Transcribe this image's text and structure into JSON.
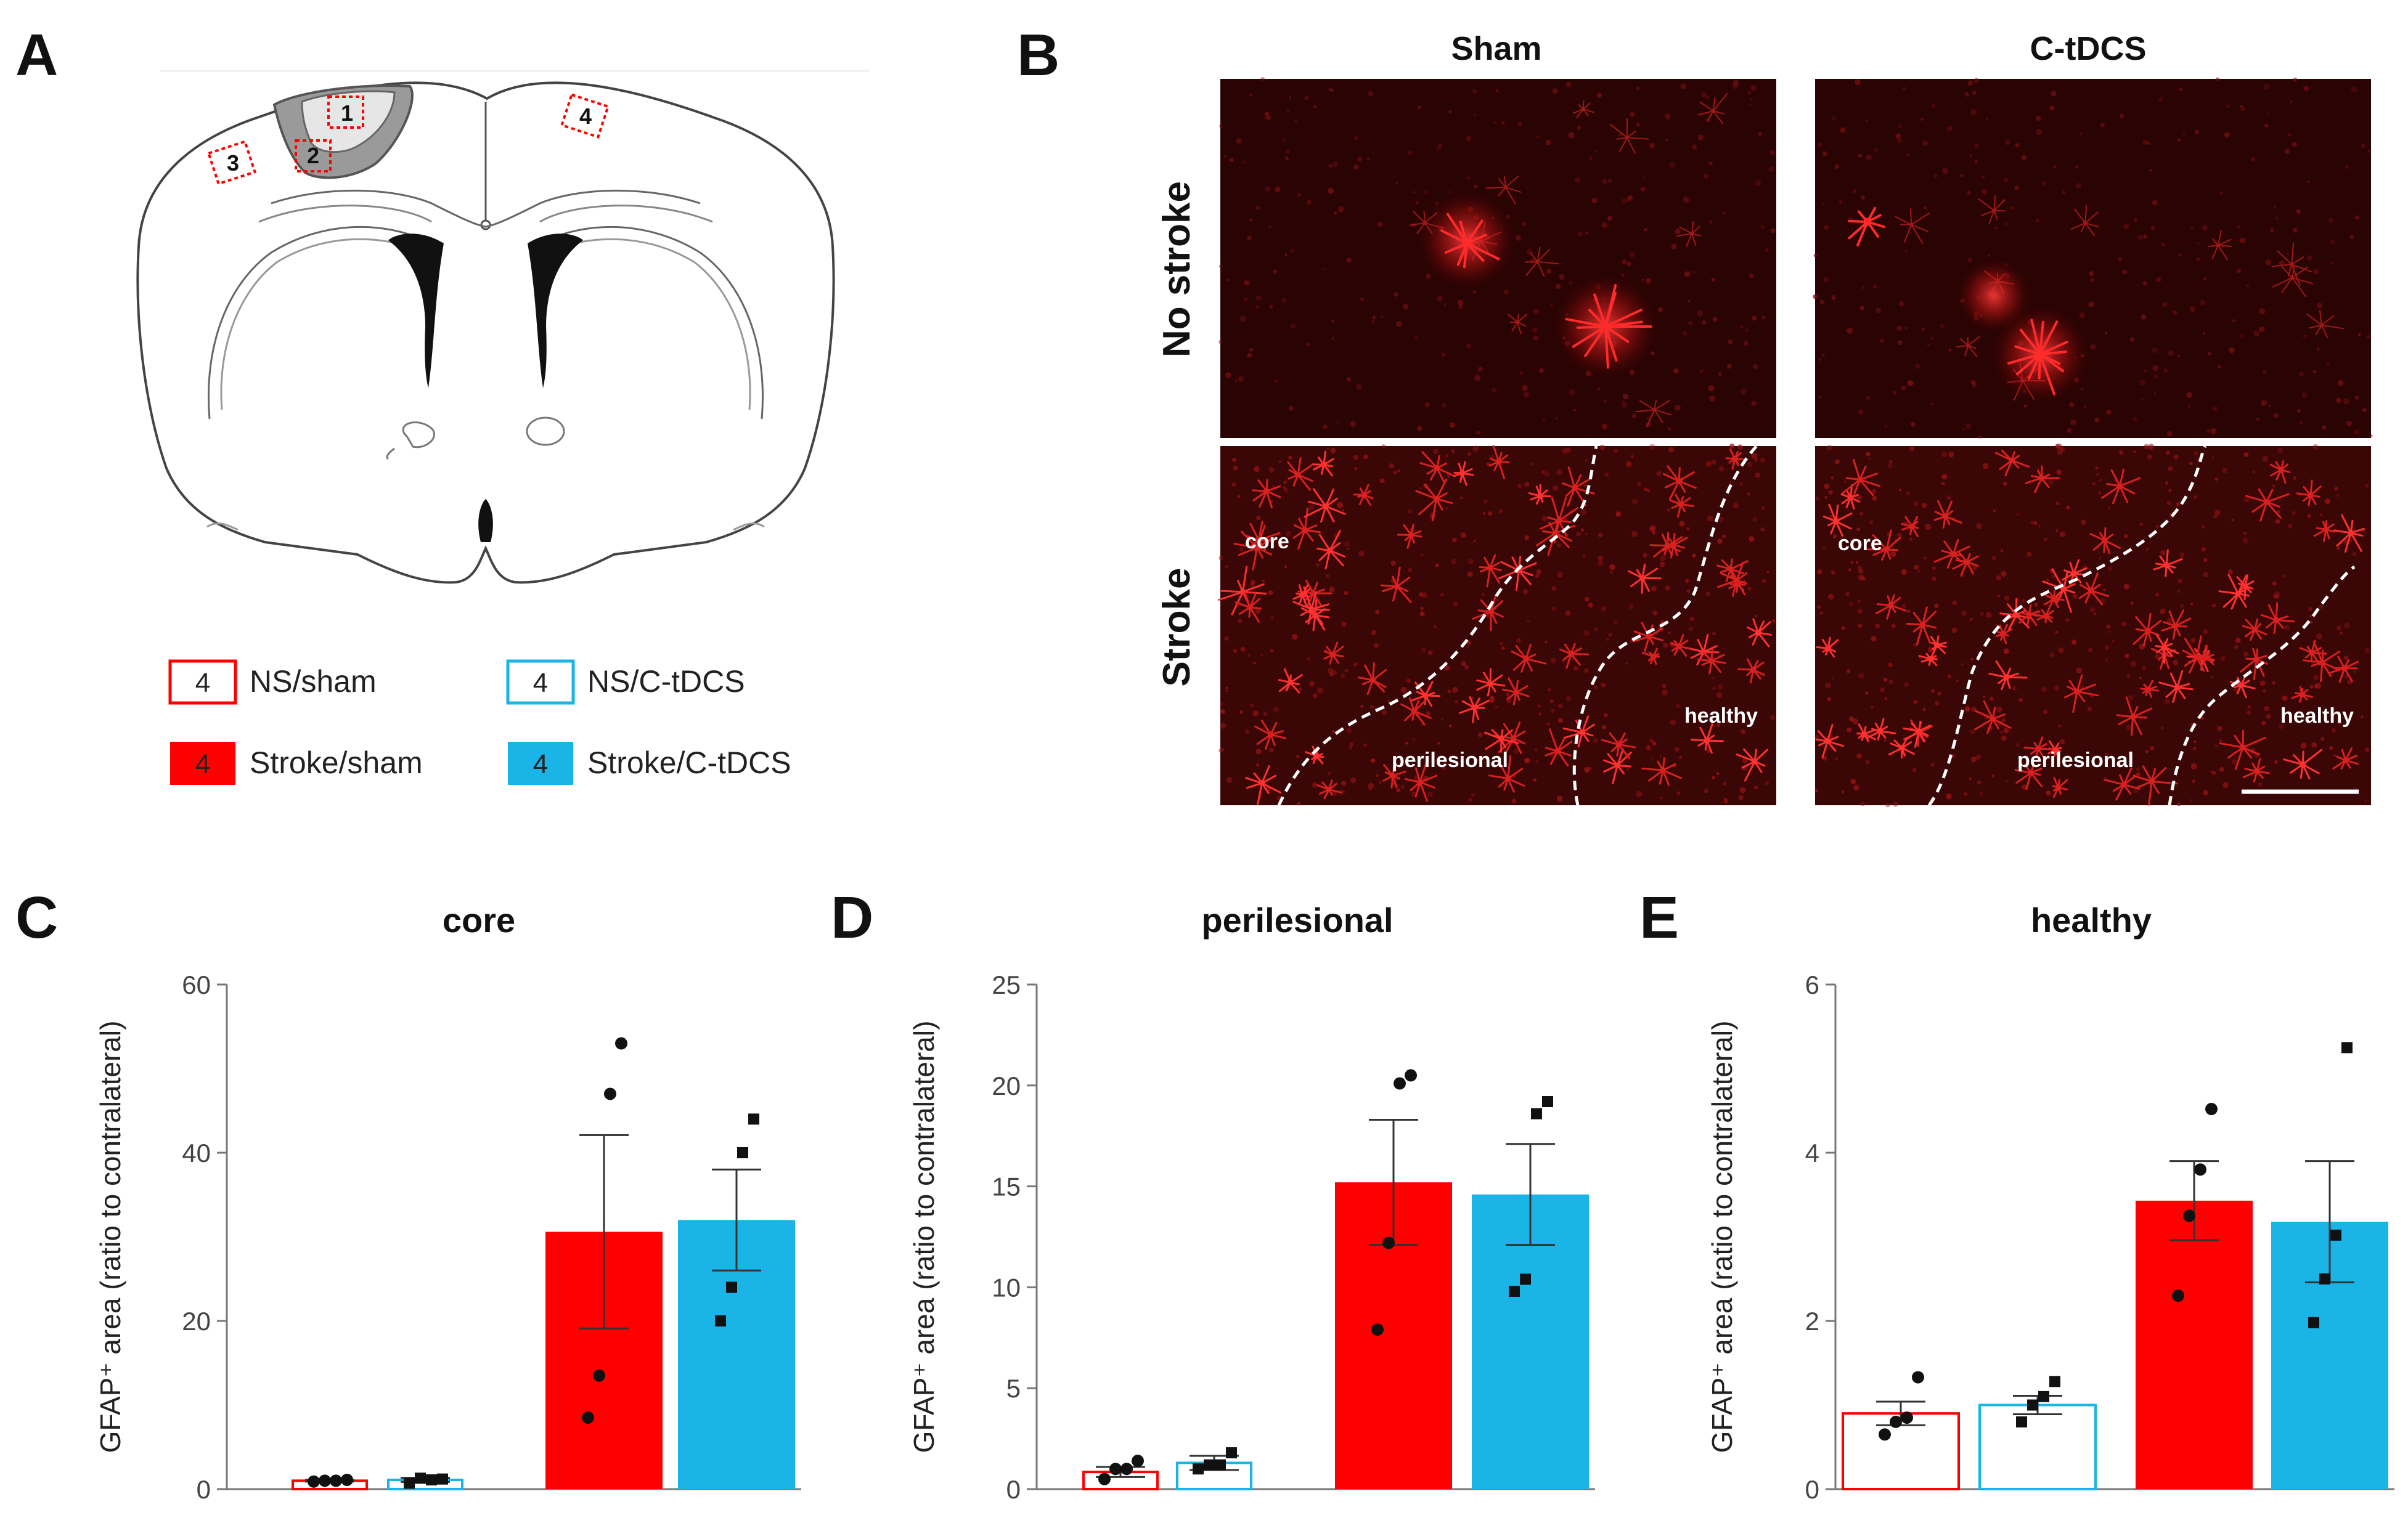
{
  "panels": {
    "a": "A",
    "b": "B",
    "c": "C",
    "d": "D",
    "e": "E"
  },
  "schematic": {
    "regions": [
      "1",
      "2",
      "3",
      "4"
    ]
  },
  "legend": {
    "sample_n": "4",
    "items": [
      {
        "label": "NS/sham",
        "color": "#ff0000",
        "filled": false
      },
      {
        "label": "NS/C-tDCS",
        "color": "#1ab4e6",
        "filled": false
      },
      {
        "label": "Stroke/sham",
        "color": "#ff0000",
        "filled": true
      },
      {
        "label": "Stroke/C-tDCS",
        "color": "#1ab4e6",
        "filled": true
      }
    ]
  },
  "micro": {
    "col_sham": "Sham",
    "col_ctdcs": "C-tDCS",
    "row_nostroke": "No stroke",
    "row_stroke": "Stroke",
    "zone_core": "core",
    "zone_perilesional": "perilesional",
    "zone_healthy": "healthy"
  },
  "colors": {
    "red": "#ff0000",
    "blue": "#1ab4e6",
    "micro_bg": "#2a0303",
    "signal": "#ff2a2a"
  },
  "chart_data": [
    {
      "type": "bar",
      "panel": "C",
      "title": "core",
      "ylabel": "GFAP⁺ area (ratio to contralateral)",
      "ylim": [
        0,
        60
      ],
      "yticks": [
        0,
        20,
        40,
        60
      ],
      "categories": [
        "NS/sham",
        "NS/C-tDCS",
        "Stroke/sham",
        "Stroke/C-tDCS"
      ],
      "values": [
        1.0,
        1.1,
        30.6,
        32.0
      ],
      "sem": [
        0.1,
        0.25,
        11.5,
        6.0
      ],
      "points": [
        [
          0.9,
          1.0,
          1.0,
          1.1
        ],
        [
          0.7,
          1.3,
          1.1,
          1.2
        ],
        [
          8.5,
          13.5,
          47,
          53
        ],
        [
          20,
          24,
          40,
          44
        ]
      ]
    },
    {
      "type": "bar",
      "panel": "D",
      "title": "perilesional",
      "ylabel": "GFAP⁺ area (ratio to contralateral)",
      "ylim": [
        0,
        25
      ],
      "yticks": [
        0,
        5,
        10,
        15,
        20,
        25
      ],
      "categories": [
        "NS/sham",
        "NS/C-tDCS",
        "Stroke/sham",
        "Stroke/C-tDCS"
      ],
      "values": [
        0.85,
        1.3,
        15.2,
        14.6
      ],
      "sem": [
        0.25,
        0.35,
        3.1,
        2.5
      ],
      "points": [
        [
          0.5,
          1.0,
          1.0,
          1.4
        ],
        [
          1.0,
          1.2,
          1.2,
          1.8
        ],
        [
          7.9,
          12.2,
          20.1,
          20.5
        ],
        [
          9.8,
          10.4,
          18.6,
          19.2
        ]
      ]
    },
    {
      "type": "bar",
      "panel": "E",
      "title": "healthy",
      "ylabel": "GFAP⁺ area (ratio to contralateral)",
      "ylim": [
        0,
        6
      ],
      "yticks": [
        0,
        2,
        4,
        6
      ],
      "categories": [
        "NS/sham",
        "NS/C-tDCS",
        "Stroke/sham",
        "Stroke/C-tDCS"
      ],
      "values": [
        0.9,
        1.0,
        3.43,
        3.18
      ],
      "sem": [
        0.14,
        0.11,
        0.47,
        0.72
      ],
      "points": [
        [
          0.65,
          0.8,
          0.85,
          1.33
        ],
        [
          0.8,
          1.0,
          1.1,
          1.28
        ],
        [
          2.3,
          3.25,
          3.8,
          4.52
        ],
        [
          1.98,
          2.5,
          3.02,
          5.25
        ]
      ]
    }
  ]
}
